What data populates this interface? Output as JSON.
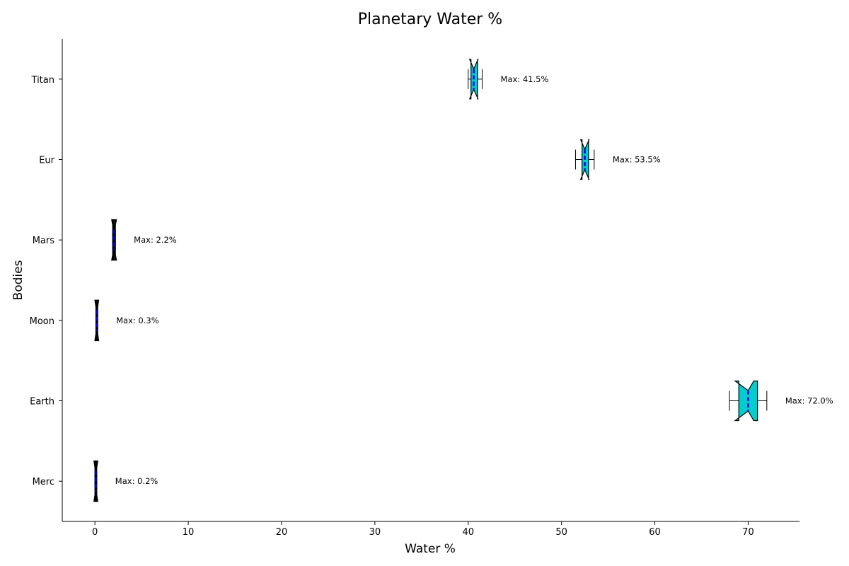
{
  "chart_data": {
    "type": "boxplot",
    "orientation": "horizontal",
    "notched": true,
    "title": "Planetary Water %",
    "xlabel": "Water %",
    "ylabel": "Bodies",
    "xlim": [
      -3.5,
      75.5
    ],
    "xticks": [
      0,
      10,
      20,
      30,
      40,
      50,
      60,
      70
    ],
    "categories": [
      "Merc",
      "Earth",
      "Moon",
      "Mars",
      "Eur",
      "Titan"
    ],
    "boxes": [
      {
        "name": "Merc",
        "whislo": 0.0,
        "q1": 0.05,
        "med": 0.1,
        "q3": 0.15,
        "whishi": 0.2,
        "notch_lo": -0.05,
        "notch_hi": 0.25,
        "annotation": "Max: 0.2%"
      },
      {
        "name": "Earth",
        "whislo": 68.0,
        "q1": 69.0,
        "med": 70.0,
        "q3": 71.0,
        "whishi": 72.0,
        "notch_lo": 68.6,
        "notch_hi": 70.6,
        "annotation": "Max: 72.0%"
      },
      {
        "name": "Moon",
        "whislo": 0.1,
        "q1": 0.15,
        "med": 0.2,
        "q3": 0.25,
        "whishi": 0.3,
        "notch_lo": 0.05,
        "notch_hi": 0.35,
        "annotation": "Max: 0.3%"
      },
      {
        "name": "Mars",
        "whislo": 1.9,
        "q1": 1.95,
        "med": 2.05,
        "q3": 2.15,
        "whishi": 2.2,
        "notch_lo": 1.85,
        "notch_hi": 2.25,
        "annotation": "Max: 2.2%"
      },
      {
        "name": "Eur",
        "whislo": 51.5,
        "q1": 52.2,
        "med": 52.5,
        "q3": 52.9,
        "whishi": 53.5,
        "notch_lo": 52.05,
        "notch_hi": 52.95,
        "annotation": "Max: 53.5%"
      },
      {
        "name": "Titan",
        "whislo": 40.0,
        "q1": 40.3,
        "med": 40.6,
        "q3": 41.0,
        "whishi": 41.5,
        "notch_lo": 40.15,
        "notch_hi": 41.05,
        "annotation": "Max: 41.5%"
      }
    ],
    "colors": {
      "box_fill": "#00cdcd",
      "median": "#0000ee",
      "edge": "#000000"
    },
    "grid": false
  }
}
